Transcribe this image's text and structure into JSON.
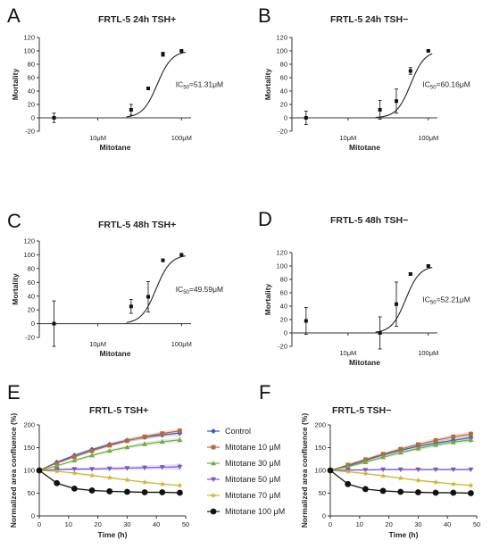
{
  "chart_data": [
    {
      "panel": "A",
      "type": "scatter",
      "title": "FRTL-5 24h TSH+",
      "xlabel": "Mitotane",
      "ylabel": "Mortality",
      "xscale": "log",
      "ylim": [
        -20,
        120
      ],
      "yticks": [
        -20,
        0,
        20,
        40,
        60,
        80,
        100,
        120
      ],
      "xticks": [
        10,
        100
      ],
      "xtick_labels": [
        "10μM",
        "100μM"
      ],
      "points": [
        {
          "x": 3,
          "y": 0,
          "err": 7
        },
        {
          "x": 25,
          "y": 12,
          "err": 8
        },
        {
          "x": 40,
          "y": 44,
          "err": 2
        },
        {
          "x": 60,
          "y": 95,
          "err": 3
        },
        {
          "x": 100,
          "y": 100,
          "err": 1
        }
      ],
      "fit": {
        "ic50": 51.31,
        "hill": 5
      },
      "annotation": {
        "label": "IC",
        "sub": "50",
        "rest": "=51.31μM"
      }
    },
    {
      "panel": "B",
      "type": "scatter",
      "title": "FRTL-5 24h TSH−",
      "xlabel": "Mitotane",
      "ylabel": "Mortality",
      "xscale": "log",
      "ylim": [
        -20,
        120
      ],
      "yticks": [
        -20,
        0,
        20,
        40,
        60,
        80,
        100,
        120
      ],
      "xticks": [
        10,
        100
      ],
      "xtick_labels": [
        "10μM",
        "100μM"
      ],
      "points": [
        {
          "x": 3,
          "y": 0,
          "err": 10
        },
        {
          "x": 25,
          "y": 12,
          "err": 14
        },
        {
          "x": 40,
          "y": 25,
          "err": 18
        },
        {
          "x": 60,
          "y": 70,
          "err": 5
        },
        {
          "x": 100,
          "y": 100,
          "err": 1
        }
      ],
      "fit": {
        "ic50": 60.16,
        "hill": 5
      },
      "annotation": {
        "label": "IC",
        "sub": "50",
        "rest": "=60.16μM"
      }
    },
    {
      "panel": "C",
      "type": "scatter",
      "title": "FRTL-5 48h TSH+",
      "xlabel": "Mitotane",
      "ylabel": "Mortality",
      "xscale": "log",
      "ylim": [
        -20,
        120
      ],
      "yticks": [
        -20,
        0,
        20,
        40,
        60,
        80,
        100,
        120
      ],
      "xticks": [
        10,
        100
      ],
      "xtick_labels": [
        "10μM",
        "100μM"
      ],
      "points": [
        {
          "x": 3,
          "y": 0,
          "err": 33
        },
        {
          "x": 25,
          "y": 25,
          "err": 10
        },
        {
          "x": 40,
          "y": 39,
          "err": 22
        },
        {
          "x": 60,
          "y": 92,
          "err": 2
        },
        {
          "x": 100,
          "y": 100,
          "err": 1
        }
      ],
      "fit": {
        "ic50": 49.59,
        "hill": 5
      },
      "annotation": {
        "label": "IC",
        "sub": "50",
        "rest": "=49.59μM"
      }
    },
    {
      "panel": "D",
      "type": "scatter",
      "title": "FRTL-5 48h TSH−",
      "xlabel": "Mitotane",
      "ylabel": "Mortality",
      "xscale": "log",
      "ylim": [
        -20,
        120
      ],
      "yticks": [
        -20,
        0,
        20,
        40,
        60,
        80,
        100,
        120
      ],
      "xticks": [
        10,
        100
      ],
      "xtick_labels": [
        "10μM",
        "100μM"
      ],
      "points": [
        {
          "x": 3,
          "y": 18,
          "err": 20
        },
        {
          "x": 25,
          "y": 0,
          "err": 24
        },
        {
          "x": 40,
          "y": 43,
          "err": 33
        },
        {
          "x": 60,
          "y": 88,
          "err": 2
        },
        {
          "x": 100,
          "y": 100,
          "err": 1
        }
      ],
      "fit": {
        "ic50": 52.21,
        "hill": 5
      },
      "annotation": {
        "label": "IC",
        "sub": "50",
        "rest": "=52.21μM"
      }
    },
    {
      "panel": "E",
      "type": "line",
      "title": "FRTL-5 TSH+",
      "xlabel": "Time (h)",
      "ylabel": "Normalized area confluence (%)",
      "xlim": [
        0,
        50
      ],
      "xticks": [
        0,
        10,
        20,
        30,
        40,
        50
      ],
      "ylim": [
        0,
        200
      ],
      "yticks": [
        0,
        50,
        100,
        150,
        200
      ],
      "x": [
        0,
        6,
        12,
        18,
        24,
        30,
        36,
        42,
        48
      ],
      "series": [
        {
          "name": "Control",
          "color": "#3a55c8",
          "marker": "diamond",
          "values": [
            100,
            118,
            133,
            146,
            157,
            166,
            173,
            178,
            182
          ],
          "err": [
            0,
            2,
            3,
            3,
            4,
            4,
            5,
            5,
            6
          ]
        },
        {
          "name": "Mitotane 10 μM",
          "color": "#b5683a",
          "marker": "square",
          "values": [
            100,
            116,
            130,
            143,
            155,
            165,
            174,
            181,
            187
          ],
          "err": [
            0,
            2,
            3,
            3,
            4,
            4,
            5,
            5,
            6
          ]
        },
        {
          "name": "Mitotane 30 μM",
          "color": "#6cae46",
          "marker": "triangle",
          "values": [
            100,
            110,
            122,
            133,
            143,
            151,
            158,
            163,
            167
          ],
          "err": [
            0,
            2,
            3,
            3,
            4,
            4,
            5,
            5,
            6
          ]
        },
        {
          "name": "Mitotane 50 μM",
          "color": "#7a56c8",
          "marker": "tri-down",
          "values": [
            100,
            102,
            103,
            103,
            104,
            105,
            106,
            107,
            108
          ],
          "err": [
            0,
            2,
            3,
            3,
            4,
            4,
            5,
            5,
            7
          ]
        },
        {
          "name": "Mitotane 70 μM",
          "color": "#d2b233",
          "marker": "star",
          "values": [
            100,
            98,
            94,
            89,
            84,
            79,
            74,
            70,
            67
          ],
          "err": [
            0,
            2,
            2,
            2,
            2,
            2,
            2,
            2,
            2
          ]
        },
        {
          "name": "Mitotane 100 μM",
          "color": "#111111",
          "marker": "circle",
          "values": [
            100,
            72,
            60,
            56,
            54,
            53,
            52,
            52,
            51
          ],
          "err": [
            0,
            2,
            2,
            2,
            2,
            2,
            2,
            2,
            2
          ]
        }
      ],
      "legend": "right"
    },
    {
      "panel": "F",
      "type": "line",
      "title": "FRTL-5 TSH−",
      "xlabel": "Time (h)",
      "ylabel": "Normalized area confluence (%)",
      "xlim": [
        0,
        50
      ],
      "xticks": [
        0,
        10,
        20,
        30,
        40,
        50
      ],
      "ylim": [
        0,
        200
      ],
      "yticks": [
        0,
        50,
        100,
        150,
        200
      ],
      "x": [
        0,
        6,
        12,
        18,
        24,
        30,
        36,
        42,
        48
      ],
      "series": [
        {
          "name": "Control",
          "color": "#3a55c8",
          "marker": "diamond",
          "values": [
            100,
            110,
            122,
            134,
            144,
            153,
            160,
            166,
            172
          ],
          "err": [
            0,
            2,
            3,
            3,
            4,
            4,
            5,
            5,
            6
          ]
        },
        {
          "name": "Mitotane 10 μM",
          "color": "#b5683a",
          "marker": "square",
          "values": [
            100,
            112,
            124,
            136,
            147,
            157,
            166,
            174,
            180
          ],
          "err": [
            0,
            2,
            3,
            3,
            4,
            4,
            5,
            5,
            6
          ]
        },
        {
          "name": "Mitotane 30 μM",
          "color": "#6cae46",
          "marker": "triangle",
          "values": [
            100,
            108,
            118,
            129,
            139,
            148,
            156,
            162,
            167
          ],
          "err": [
            0,
            2,
            3,
            3,
            4,
            4,
            5,
            5,
            6
          ]
        },
        {
          "name": "Mitotane 50 μM",
          "color": "#7a56c8",
          "marker": "tri-down",
          "values": [
            100,
            101,
            101,
            102,
            102,
            102,
            102,
            102,
            102
          ],
          "err": [
            0,
            2,
            2,
            2,
            2,
            2,
            2,
            2,
            2
          ]
        },
        {
          "name": "Mitotane 70 μM",
          "color": "#d2b233",
          "marker": "star",
          "values": [
            100,
            97,
            93,
            88,
            83,
            78,
            74,
            70,
            67
          ],
          "err": [
            0,
            2,
            2,
            2,
            2,
            2,
            2,
            2,
            2
          ]
        },
        {
          "name": "Mitotane 100 μM",
          "color": "#111111",
          "marker": "circle",
          "values": [
            100,
            70,
            59,
            55,
            53,
            52,
            51,
            51,
            50
          ],
          "err": [
            0,
            2,
            2,
            2,
            2,
            2,
            2,
            2,
            2
          ]
        }
      ]
    }
  ]
}
